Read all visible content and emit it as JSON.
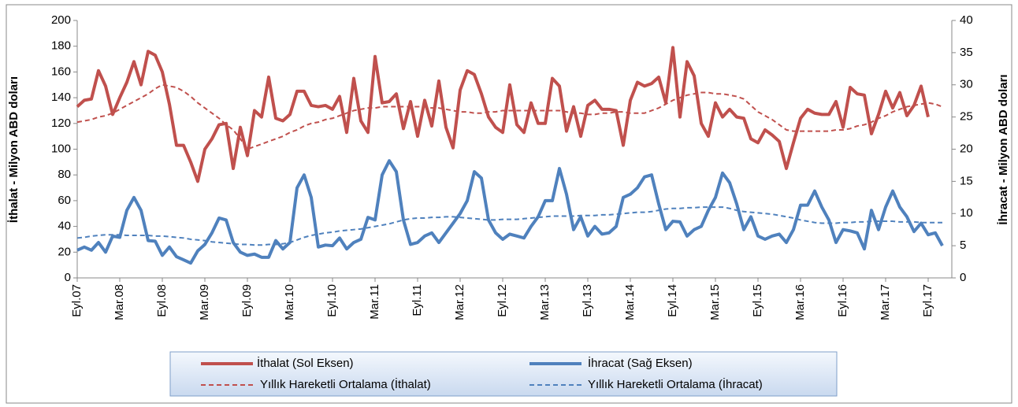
{
  "chart_data": {
    "type": "line",
    "ylabel": "İthalat - Milyon  ABD doları",
    "y2label": "İhracat - Milyon ABD  doları",
    "legend": "bottom",
    "grid": false,
    "ylim": [
      0,
      200
    ],
    "yticks": [
      0,
      20,
      40,
      60,
      80,
      100,
      120,
      140,
      160,
      180,
      200
    ],
    "y2lim": [
      0,
      40
    ],
    "y2ticks": [
      0,
      5,
      10,
      15,
      20,
      25,
      30,
      35,
      40
    ],
    "categories": [
      "Eyl.07",
      null,
      null,
      null,
      null,
      null,
      "Mar.08",
      null,
      null,
      null,
      null,
      null,
      "Eyl.08",
      null,
      null,
      null,
      null,
      null,
      "Mar.09",
      null,
      null,
      null,
      null,
      null,
      "Eyl.09",
      null,
      null,
      null,
      null,
      null,
      "Mar.10",
      null,
      null,
      null,
      null,
      null,
      "Eyl.10",
      null,
      null,
      null,
      null,
      null,
      "Mar.11",
      null,
      null,
      null,
      null,
      null,
      "Eyl.11",
      null,
      null,
      null,
      null,
      null,
      "Mar.12",
      null,
      null,
      null,
      null,
      null,
      "Eyl.12",
      null,
      null,
      null,
      null,
      null,
      "Mar.13",
      null,
      null,
      null,
      null,
      null,
      "Eyl.13",
      null,
      null,
      null,
      null,
      null,
      "Mar.14",
      null,
      null,
      null,
      null,
      null,
      "Eyl.14",
      null,
      null,
      null,
      null,
      null,
      "Mar.15",
      null,
      null,
      null,
      null,
      null,
      "Eyl.15",
      null,
      null,
      null,
      null,
      null,
      "Mar.16",
      null,
      null,
      null,
      null,
      null,
      "Eyl.16",
      null,
      null,
      null,
      null,
      null,
      "Mar.17",
      null,
      null,
      null,
      null,
      null,
      "Eyl.17",
      null,
      null
    ],
    "series": [
      {
        "name": "İthalat (Sol Eksen)",
        "color": "#c0504d",
        "style": "solid",
        "axis": "y",
        "values": [
          133,
          138,
          139,
          161,
          149,
          127,
          140,
          152,
          168,
          150,
          176,
          173,
          160,
          135,
          103,
          103,
          90,
          75,
          100,
          108,
          119,
          120,
          85,
          117,
          95,
          130,
          125,
          156,
          124,
          122,
          127,
          145,
          145,
          134,
          133,
          134,
          131,
          141,
          113,
          155,
          122,
          113,
          172,
          136,
          137,
          143,
          116,
          137,
          110,
          138,
          118,
          153,
          117,
          101,
          146,
          161,
          158,
          143,
          125,
          117,
          113,
          150,
          119,
          113,
          136,
          120,
          120,
          155,
          149,
          114,
          133,
          110,
          134,
          138,
          131,
          131,
          130,
          103,
          138,
          152,
          149,
          151,
          156,
          136,
          179,
          125,
          168,
          157,
          120,
          110,
          136,
          125,
          131,
          125,
          124,
          108,
          105,
          115,
          111,
          106,
          85,
          105,
          124,
          131,
          128,
          127,
          127,
          137,
          117,
          148,
          143,
          142,
          112,
          127,
          145,
          132,
          144,
          126,
          134,
          149,
          125,
          null,
          null
        ]
      },
      {
        "name": "İhracat (Sağ Eksen)",
        "color": "#4f81bd",
        "style": "solid",
        "axis": "y2",
        "values": [
          4.3,
          4.8,
          4.3,
          5.5,
          4.0,
          6.5,
          6.3,
          10.5,
          12.5,
          10.5,
          5.8,
          5.7,
          3.5,
          4.8,
          3.3,
          2.8,
          2.3,
          4.2,
          5.2,
          7.0,
          9.3,
          9.0,
          5.5,
          4.0,
          3.5,
          3.7,
          3.2,
          3.2,
          5.8,
          4.5,
          5.5,
          14.0,
          16.0,
          12.5,
          4.8,
          5.1,
          5.0,
          6.2,
          4.5,
          5.5,
          6.0,
          9.4,
          9.0,
          16.0,
          18.2,
          16.5,
          9.0,
          5.2,
          5.5,
          6.5,
          7.0,
          5.5,
          7.0,
          8.5,
          10.0,
          12.0,
          16.5,
          15.5,
          9.0,
          7.0,
          6.0,
          6.8,
          6.5,
          6.2,
          8.0,
          9.5,
          12.0,
          12.0,
          17.0,
          13.0,
          7.5,
          9.5,
          6.5,
          8.0,
          6.8,
          7.0,
          8.0,
          12.5,
          13.0,
          14.0,
          15.7,
          16.0,
          11.5,
          7.5,
          8.8,
          8.7,
          6.5,
          7.5,
          8.0,
          10.5,
          12.5,
          16.3,
          14.8,
          11.5,
          7.5,
          9.5,
          6.5,
          6.0,
          6.5,
          6.8,
          5.5,
          7.5,
          11.3,
          11.3,
          13.5,
          11.0,
          9.0,
          5.5,
          7.5,
          7.3,
          7.0,
          4.5,
          10.5,
          7.5,
          11.0,
          13.5,
          11.0,
          9.5,
          7.2,
          8.5,
          6.7,
          7.0,
          5.0
        ]
      },
      {
        "name": "Yıllık Hareketli Ortalama (İthalat)",
        "color": "#c0504d",
        "style": "dashed",
        "axis": "y",
        "values": [
          121,
          122,
          123,
          125,
          126,
          128,
          131,
          134,
          137,
          140,
          143,
          147,
          150,
          149,
          148,
          145,
          141,
          136,
          132,
          128,
          124,
          119,
          115,
          108,
          100,
          102,
          104,
          106,
          108,
          110,
          113,
          115,
          118,
          120,
          121,
          123,
          124,
          126,
          128,
          130,
          131,
          132,
          132,
          133,
          133,
          133,
          133,
          133,
          133,
          133,
          132,
          132,
          131,
          130,
          129,
          129,
          128,
          128,
          129,
          129,
          130,
          130,
          130,
          130,
          130,
          130,
          130,
          130,
          130,
          129,
          128,
          128,
          127,
          127,
          128,
          128,
          129,
          129,
          128,
          128,
          128,
          130,
          132,
          135,
          138,
          140,
          142,
          143,
          144,
          144,
          143,
          143,
          142,
          141,
          139,
          134,
          129,
          126,
          123,
          119,
          115,
          114,
          114,
          114,
          114,
          114,
          114,
          115,
          115,
          116,
          118,
          119,
          121,
          124,
          126,
          129,
          131,
          133,
          134,
          135,
          136,
          135,
          133
        ]
      },
      {
        "name": "Yıllık Hareketli Ortalama (İhracat)",
        "color": "#4f81bd",
        "style": "dashed",
        "axis": "y2",
        "values": [
          6.2,
          6.3,
          6.5,
          6.6,
          6.7,
          6.7,
          6.7,
          6.6,
          6.6,
          6.6,
          6.6,
          6.5,
          6.5,
          6.4,
          6.3,
          6.2,
          6.0,
          5.9,
          5.8,
          5.6,
          5.5,
          5.4,
          5.3,
          5.2,
          5.2,
          5.1,
          5.1,
          5.2,
          5.2,
          5.3,
          5.5,
          5.9,
          6.3,
          6.6,
          6.8,
          7.0,
          7.1,
          7.3,
          7.4,
          7.5,
          7.6,
          7.8,
          8.0,
          8.2,
          8.4,
          8.7,
          9.0,
          9.2,
          9.3,
          9.3,
          9.4,
          9.4,
          9.5,
          9.5,
          9.4,
          9.3,
          9.2,
          9.1,
          9.0,
          9.0,
          9.1,
          9.1,
          9.1,
          9.2,
          9.3,
          9.4,
          9.5,
          9.6,
          9.6,
          9.6,
          9.6,
          9.7,
          9.7,
          9.7,
          9.8,
          9.8,
          9.9,
          10.0,
          10.1,
          10.2,
          10.2,
          10.3,
          10.5,
          10.7,
          10.8,
          10.8,
          10.9,
          10.9,
          11.0,
          11.0,
          11.0,
          11.0,
          10.8,
          10.5,
          10.3,
          10.2,
          10.1,
          10.0,
          9.9,
          9.7,
          9.5,
          9.3,
          9.0,
          8.8,
          8.6,
          8.5,
          8.5,
          8.5,
          8.6,
          8.6,
          8.7,
          8.7,
          8.8,
          8.8,
          8.8,
          8.8,
          8.7,
          8.7,
          8.7,
          8.6,
          8.6,
          8.6,
          8.6
        ]
      }
    ]
  }
}
